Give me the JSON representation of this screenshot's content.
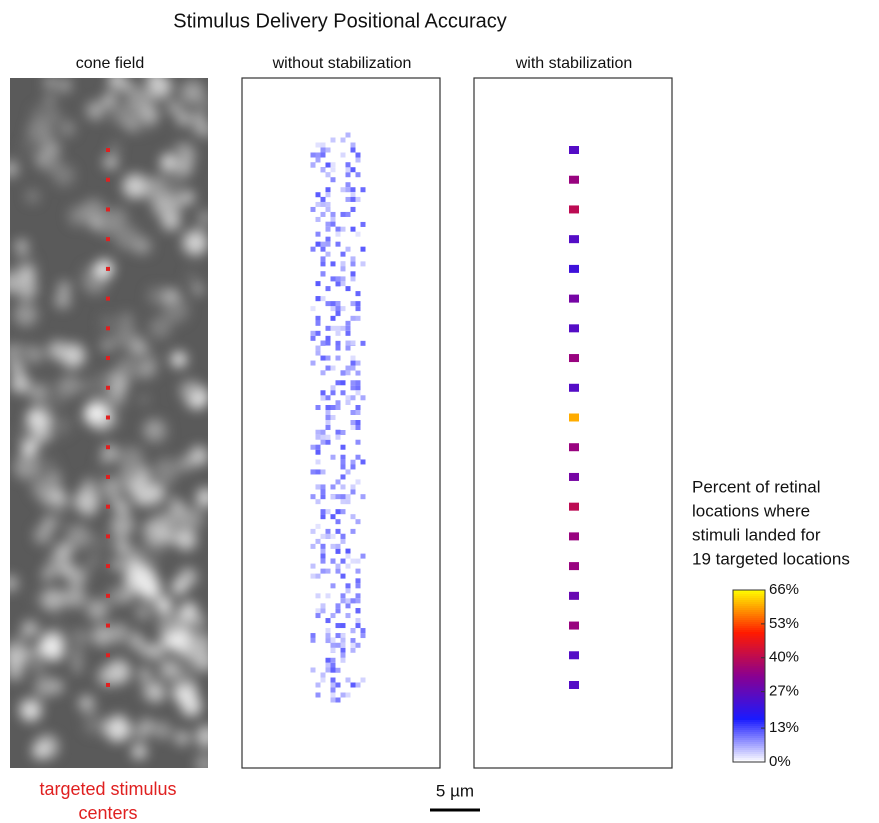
{
  "chart_data": {
    "type": "heatmap",
    "title": "Stimulus Delivery Positional Accuracy",
    "panels": [
      "cone field",
      "without stabilization",
      "with stabilization"
    ],
    "target_label": [
      "targeted stimulus",
      "centers"
    ],
    "scale_bar": "5 µm",
    "colorbar": {
      "title": [
        "Percent of retinal",
        "locations where",
        "stimuli landed for",
        "19 targeted locations"
      ],
      "lim": [
        0,
        66
      ],
      "ticks": [
        {
          "value": 0,
          "label": "0%"
        },
        {
          "value": 13,
          "label": "13%"
        },
        {
          "value": 27,
          "label": "27%"
        },
        {
          "value": 40,
          "label": "40%"
        },
        {
          "value": 53,
          "label": "53%"
        },
        {
          "value": 66,
          "label": "66%"
        }
      ],
      "colormap": [
        "#ffffff",
        "#1a1aff",
        "#8a0090",
        "#ff1a00",
        "#ffff00"
      ]
    },
    "target_color": "#e02020",
    "stabilized_peaks": [
      25,
      35,
      40,
      25,
      22,
      30,
      25,
      35,
      25,
      60,
      35,
      30,
      40,
      35,
      35,
      28,
      35,
      25,
      25
    ]
  }
}
